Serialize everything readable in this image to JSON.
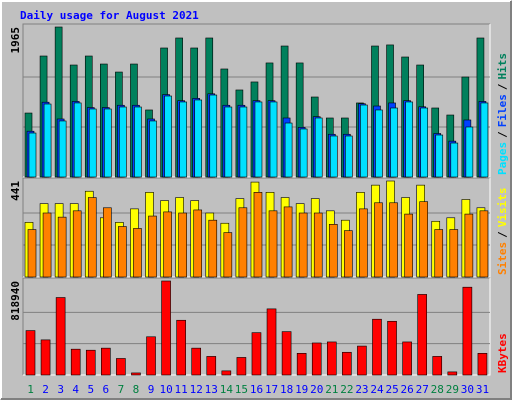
{
  "chart_data": [
    {
      "type": "bar",
      "title": "Daily usage for August 2021",
      "legend_separator": "/",
      "grid_divisions": 3,
      "ylim": [
        0,
        1965
      ],
      "yticks": [
        1965
      ],
      "series": [
        {
          "name": "Hits",
          "color": "#00805c",
          "values": [
            838,
            1585,
            1965,
            1467,
            1585,
            1480,
            1375,
            1480,
            878,
            1690,
            1821,
            1690,
            1821,
            1415,
            1140,
            1245,
            1494,
            1716,
            1494,
            1048,
            773,
            773,
            970,
            1716,
            1730,
            1572,
            1467,
            904,
            812,
            1310,
            1821
          ]
        },
        {
          "name": "Files",
          "color": "#0040ff",
          "values": [
            600,
            980,
            760,
            990,
            910,
            910,
            940,
            940,
            760,
            1080,
            1000,
            1030,
            1090,
            940,
            940,
            1000,
            1000,
            773,
            650,
            790,
            560,
            560,
            960,
            930,
            970,
            1000,
            920,
            570,
            470,
            747,
            990
          ]
        },
        {
          "name": "Pages",
          "color": "#00e0ff",
          "values": [
            576,
            956,
            734,
            970,
            891,
            891,
            917,
            917,
            734,
            1061,
            983,
            1009,
            1074,
            917,
            917,
            983,
            983,
            707,
            629,
            773,
            537,
            537,
            943,
            878,
            904,
            983,
            904,
            550,
            445,
            655,
            970
          ]
        }
      ]
    },
    {
      "type": "bar",
      "grid_divisions": 3,
      "legend_separator": "/",
      "ylim": [
        0,
        441
      ],
      "yticks": [
        441
      ],
      "series": [
        {
          "name": "Visits",
          "color": "#ffff00",
          "values": [
            251,
            337,
            337,
            337,
            394,
            272,
            251,
            313,
            389,
            351,
            365,
            351,
            294,
            247,
            360,
            436,
            389,
            365,
            337,
            360,
            304,
            261,
            389,
            422,
            441,
            365,
            422,
            256,
            272,
            356,
            318
          ]
        },
        {
          "name": "Sites",
          "color": "#ff8000",
          "values": [
            218,
            294,
            275,
            304,
            365,
            318,
            232,
            223,
            280,
            299,
            294,
            308,
            261,
            204,
            318,
            389,
            304,
            322,
            294,
            294,
            242,
            213,
            313,
            341,
            341,
            289,
            346,
            218,
            218,
            289,
            304
          ]
        }
      ]
    },
    {
      "type": "bar",
      "grid_divisions": 3,
      "ylim": [
        0,
        818940
      ],
      "yticks": [
        818940
      ],
      "categories": [
        "1",
        "2",
        "3",
        "4",
        "5",
        "6",
        "7",
        "8",
        "9",
        "10",
        "11",
        "12",
        "13",
        "14",
        "15",
        "16",
        "17",
        "18",
        "19",
        "20",
        "21",
        "22",
        "23",
        "24",
        "25",
        "26",
        "27",
        "28",
        "29",
        "30",
        "31"
      ],
      "category_colors": [
        "#008040",
        "#0000ff",
        "#0000ff",
        "#0000ff",
        "#0000ff",
        "#0000ff",
        "#008040",
        "#008040",
        "#0000ff",
        "#0000ff",
        "#0000ff",
        "#0000ff",
        "#0000ff",
        "#008040",
        "#008040",
        "#0000ff",
        "#0000ff",
        "#0000ff",
        "#0000ff",
        "#0000ff",
        "#008040",
        "#008040",
        "#0000ff",
        "#0000ff",
        "#0000ff",
        "#0000ff",
        "#0000ff",
        "#008040",
        "#008040",
        "#0000ff",
        "#0000ff"
      ],
      "series": [
        {
          "name": "KBytes",
          "color": "#ff0000",
          "values": [
            387000,
            306000,
            675000,
            225000,
            216000,
            234000,
            144000,
            18000,
            333000,
            818940,
            477000,
            234000,
            162000,
            36000,
            153000,
            369000,
            576000,
            378000,
            189000,
            279000,
            288000,
            198000,
            252000,
            486000,
            468000,
            288000,
            702000,
            162000,
            27000,
            765000,
            189000
          ]
        }
      ]
    }
  ]
}
